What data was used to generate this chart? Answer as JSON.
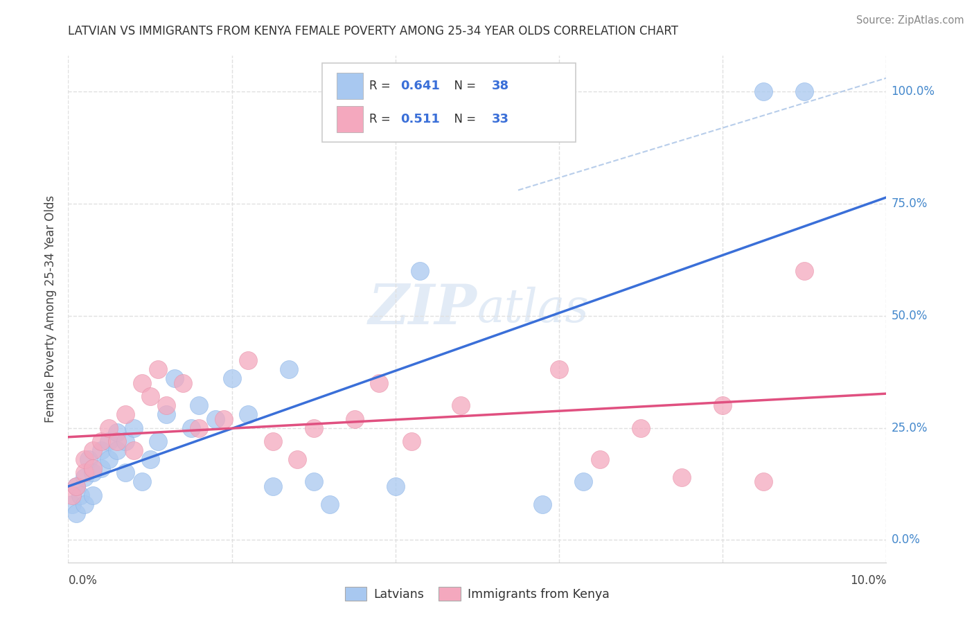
{
  "title": "LATVIAN VS IMMIGRANTS FROM KENYA FEMALE POVERTY AMONG 25-34 YEAR OLDS CORRELATION CHART",
  "source": "Source: ZipAtlas.com",
  "ylabel": "Female Poverty Among 25-34 Year Olds",
  "xlim": [
    0.0,
    0.1
  ],
  "ylim": [
    -0.05,
    1.08
  ],
  "yticks_right": [
    0.0,
    0.25,
    0.5,
    0.75,
    1.0
  ],
  "ytick_labels_right": [
    "0.0%",
    "25.0%",
    "50.0%",
    "75.0%",
    "100.0%"
  ],
  "xtick_positions": [
    0.0,
    0.02,
    0.04,
    0.06,
    0.08,
    0.1
  ],
  "latvian_color": "#a8c8f0",
  "kenya_color": "#f4a8be",
  "latvian_line_color": "#3a6fd8",
  "kenya_line_color": "#e05080",
  "legend_R_latvian": "0.641",
  "legend_N_latvian": "38",
  "legend_R_kenya": "0.511",
  "legend_N_kenya": "33",
  "legend_label_latvian": "Latvians",
  "legend_label_kenya": "Immigrants from Kenya",
  "watermark": "ZIPatlas",
  "latvian_x": [
    0.0005,
    0.001,
    0.001,
    0.0015,
    0.002,
    0.002,
    0.0025,
    0.003,
    0.003,
    0.004,
    0.004,
    0.005,
    0.005,
    0.006,
    0.006,
    0.007,
    0.007,
    0.008,
    0.009,
    0.01,
    0.011,
    0.012,
    0.013,
    0.015,
    0.016,
    0.018,
    0.02,
    0.022,
    0.025,
    0.027,
    0.03,
    0.032,
    0.04,
    0.043,
    0.058,
    0.063,
    0.085,
    0.09
  ],
  "latvian_y": [
    0.08,
    0.06,
    0.12,
    0.1,
    0.14,
    0.08,
    0.18,
    0.15,
    0.1,
    0.2,
    0.16,
    0.22,
    0.18,
    0.24,
    0.2,
    0.22,
    0.15,
    0.25,
    0.13,
    0.18,
    0.22,
    0.28,
    0.36,
    0.25,
    0.3,
    0.27,
    0.36,
    0.28,
    0.12,
    0.38,
    0.13,
    0.08,
    0.12,
    0.6,
    0.08,
    0.13,
    1.0,
    1.0
  ],
  "kenya_x": [
    0.0005,
    0.001,
    0.002,
    0.002,
    0.003,
    0.003,
    0.004,
    0.005,
    0.006,
    0.007,
    0.008,
    0.009,
    0.01,
    0.011,
    0.012,
    0.014,
    0.016,
    0.019,
    0.022,
    0.025,
    0.028,
    0.03,
    0.035,
    0.038,
    0.042,
    0.048,
    0.06,
    0.065,
    0.07,
    0.075,
    0.08,
    0.085,
    0.09
  ],
  "kenya_y": [
    0.1,
    0.12,
    0.15,
    0.18,
    0.16,
    0.2,
    0.22,
    0.25,
    0.22,
    0.28,
    0.2,
    0.35,
    0.32,
    0.38,
    0.3,
    0.35,
    0.25,
    0.27,
    0.4,
    0.22,
    0.18,
    0.25,
    0.27,
    0.35,
    0.22,
    0.3,
    0.38,
    0.18,
    0.25,
    0.14,
    0.3,
    0.13,
    0.6
  ],
  "bg_color": "#ffffff",
  "grid_color": "#e0e0e0",
  "diag_line_x": [
    0.055,
    0.1
  ],
  "diag_line_y": [
    0.78,
    1.03
  ]
}
